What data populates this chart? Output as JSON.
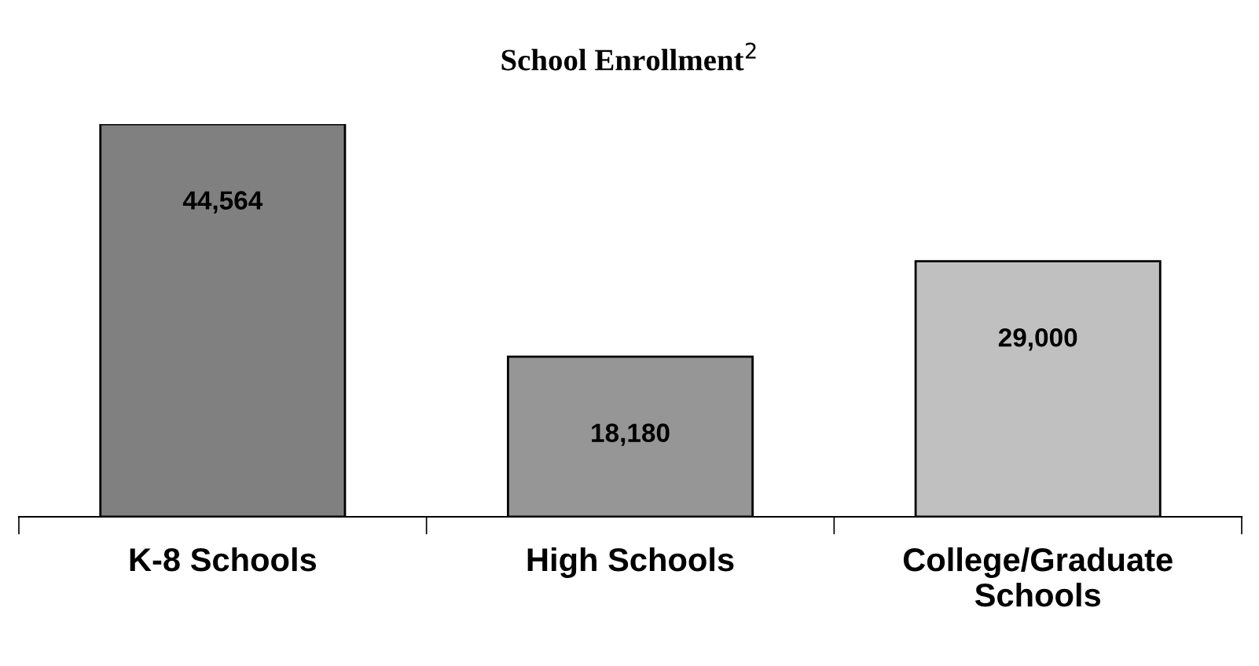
{
  "chart_data": {
    "type": "bar",
    "title": "School Enrollment$^{2}$",
    "categories": [
      "K-8 Schools",
      "High Schools",
      "College/Graduate\nSchools"
    ],
    "values": [
      44564,
      18180,
      29000
    ],
    "colors": [
      "#808080",
      "#969696",
      "#c0c0c0"
    ],
    "value_labels": [
      "44,564",
      "18,180",
      "29,000"
    ],
    "grid": false,
    "legend": false
  }
}
